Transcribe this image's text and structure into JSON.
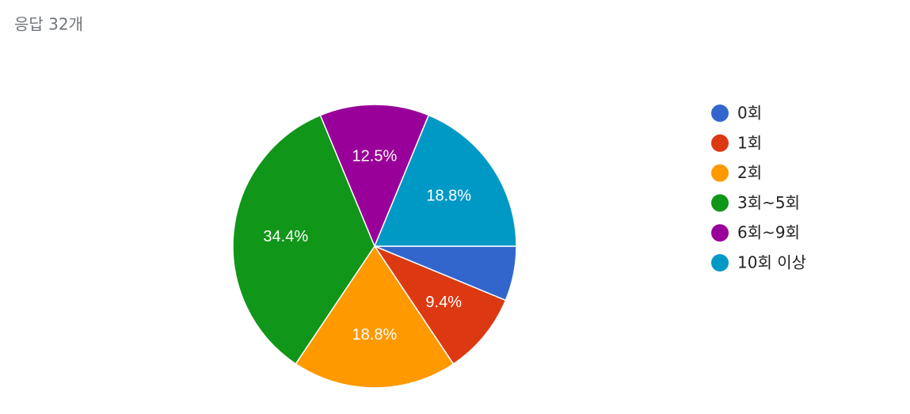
{
  "chart_data": {
    "type": "pie",
    "title": "응답 32개",
    "categories": [
      "0회",
      "1회",
      "2회",
      "3회~5회",
      "6회~9회",
      "10회 이상"
    ],
    "values": [
      6.25,
      9.4,
      18.8,
      34.4,
      12.5,
      18.8
    ],
    "value_labels": [
      null,
      "9.4%",
      "18.8%",
      "34.4%",
      "12.5%",
      "18.8%"
    ],
    "colors": [
      "#3366cc",
      "#dc3912",
      "#ff9900",
      "#109618",
      "#990099",
      "#0099c6"
    ],
    "legend": "right"
  }
}
